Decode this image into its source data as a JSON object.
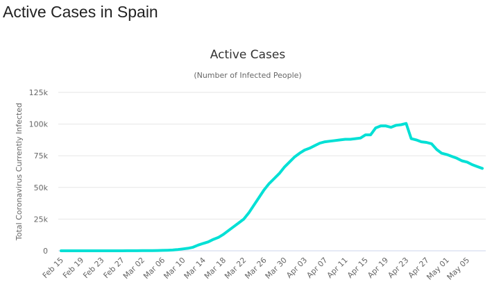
{
  "page_title": "Active Cases in Spain",
  "chart_data": {
    "type": "line",
    "title": "Active Cases",
    "subtitle": "(Number of Infected People)",
    "xlabel": "",
    "ylabel": "Total Coronavirus Currently Infected",
    "ylim": [
      0,
      125000
    ],
    "yticks": [
      0,
      25000,
      50000,
      75000,
      100000,
      125000
    ],
    "ytick_labels": [
      "0",
      "25k",
      "50k",
      "75k",
      "100k",
      "125k"
    ],
    "xtick_labels": [
      "Feb 15",
      "Feb 19",
      "Feb 23",
      "Feb 27",
      "Mar 02",
      "Mar 06",
      "Mar 10",
      "Mar 14",
      "Mar 18",
      "Mar 22",
      "Mar 26",
      "Mar 30",
      "Apr 03",
      "Apr 07",
      "Apr 11",
      "Apr 15",
      "Apr 19",
      "Apr 23",
      "Apr 27",
      "May 01",
      "May 05"
    ],
    "grid": true,
    "line_color": "#00e0d5",
    "x": [
      "Feb 15",
      "Feb 16",
      "Feb 17",
      "Feb 18",
      "Feb 19",
      "Feb 20",
      "Feb 21",
      "Feb 22",
      "Feb 23",
      "Feb 24",
      "Feb 25",
      "Feb 26",
      "Feb 27",
      "Feb 28",
      "Feb 29",
      "Mar 01",
      "Mar 02",
      "Mar 03",
      "Mar 04",
      "Mar 05",
      "Mar 06",
      "Mar 07",
      "Mar 08",
      "Mar 09",
      "Mar 10",
      "Mar 11",
      "Mar 12",
      "Mar 13",
      "Mar 14",
      "Mar 15",
      "Mar 16",
      "Mar 17",
      "Mar 18",
      "Mar 19",
      "Mar 20",
      "Mar 21",
      "Mar 22",
      "Mar 23",
      "Mar 24",
      "Mar 25",
      "Mar 26",
      "Mar 27",
      "Mar 28",
      "Mar 29",
      "Mar 30",
      "Mar 31",
      "Apr 01",
      "Apr 02",
      "Apr 03",
      "Apr 04",
      "Apr 05",
      "Apr 06",
      "Apr 07",
      "Apr 08",
      "Apr 09",
      "Apr 10",
      "Apr 11",
      "Apr 12",
      "Apr 13",
      "Apr 14",
      "Apr 15",
      "Apr 16",
      "Apr 17",
      "Apr 18",
      "Apr 19",
      "Apr 20",
      "Apr 21",
      "Apr 22",
      "Apr 23",
      "Apr 24",
      "Apr 25",
      "Apr 26",
      "Apr 27",
      "Apr 28",
      "Apr 29",
      "Apr 30",
      "May 01",
      "May 02",
      "May 03",
      "May 04",
      "May 05",
      "May 06",
      "May 07",
      "May 08"
    ],
    "series": [
      {
        "values": [
          0,
          0,
          0,
          0,
          0,
          0,
          0,
          0,
          0,
          2,
          5,
          10,
          20,
          30,
          40,
          60,
          100,
          130,
          180,
          230,
          320,
          450,
          600,
          1000,
          1500,
          2000,
          2800,
          4500,
          5800,
          7000,
          9000,
          10500,
          13000,
          16000,
          19000,
          22000,
          25000,
          30000,
          36000,
          42000,
          48000,
          53000,
          57000,
          61000,
          66000,
          70000,
          74000,
          77000,
          79500,
          81000,
          83000,
          85000,
          86000,
          86500,
          87000,
          87500,
          88000,
          88000,
          88500,
          89000,
          91500,
          91500,
          97000,
          98500,
          98500,
          97500,
          99000,
          99500,
          100500,
          88500,
          87500,
          86000,
          85500,
          84500,
          80000,
          77000,
          76000,
          74500,
          73000,
          71000,
          70000,
          68000,
          66500,
          65000
        ]
      }
    ]
  }
}
